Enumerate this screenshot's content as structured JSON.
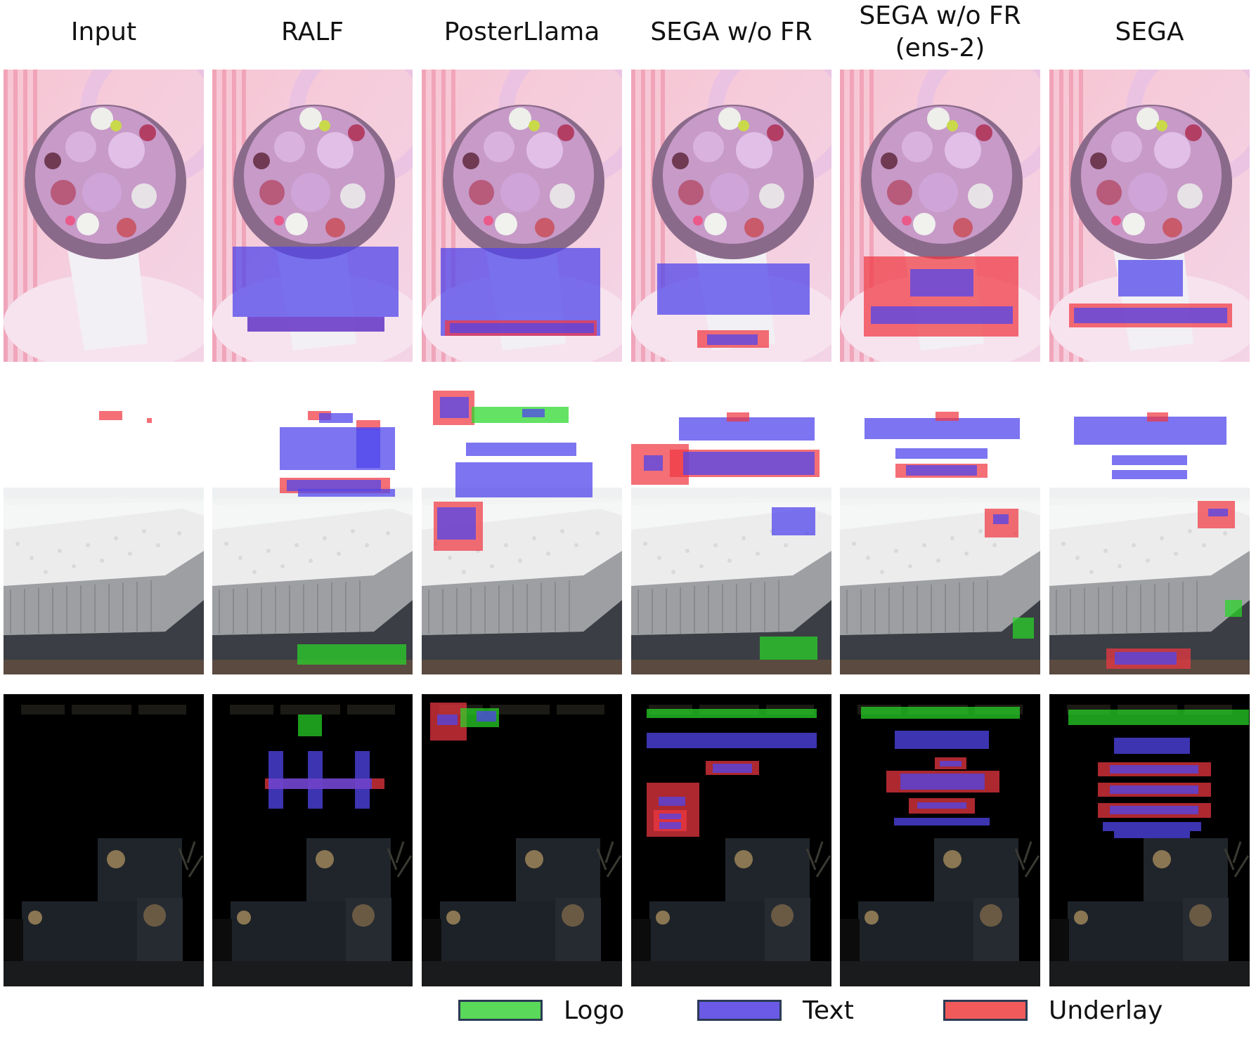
{
  "columns": [
    {
      "label": "Input"
    },
    {
      "label": "RALF"
    },
    {
      "label": "PosterLlama"
    },
    {
      "label": "SEGA w/o FR"
    },
    {
      "label": "SEGA w/o FR\n(ens-2)"
    },
    {
      "label": "SEGA"
    }
  ],
  "rows": [
    {
      "scene": "flower-bouquet"
    },
    {
      "scene": "mattress-bed"
    },
    {
      "scene": "dark-product-boxes"
    }
  ],
  "legend": [
    {
      "label": "Logo",
      "kind": "logo",
      "color": "#5ad85a"
    },
    {
      "label": "Text",
      "kind": "text",
      "color": "#6a5ae6"
    },
    {
      "label": "Underlay",
      "kind": "underlay",
      "color": "#f05a5a"
    }
  ]
}
